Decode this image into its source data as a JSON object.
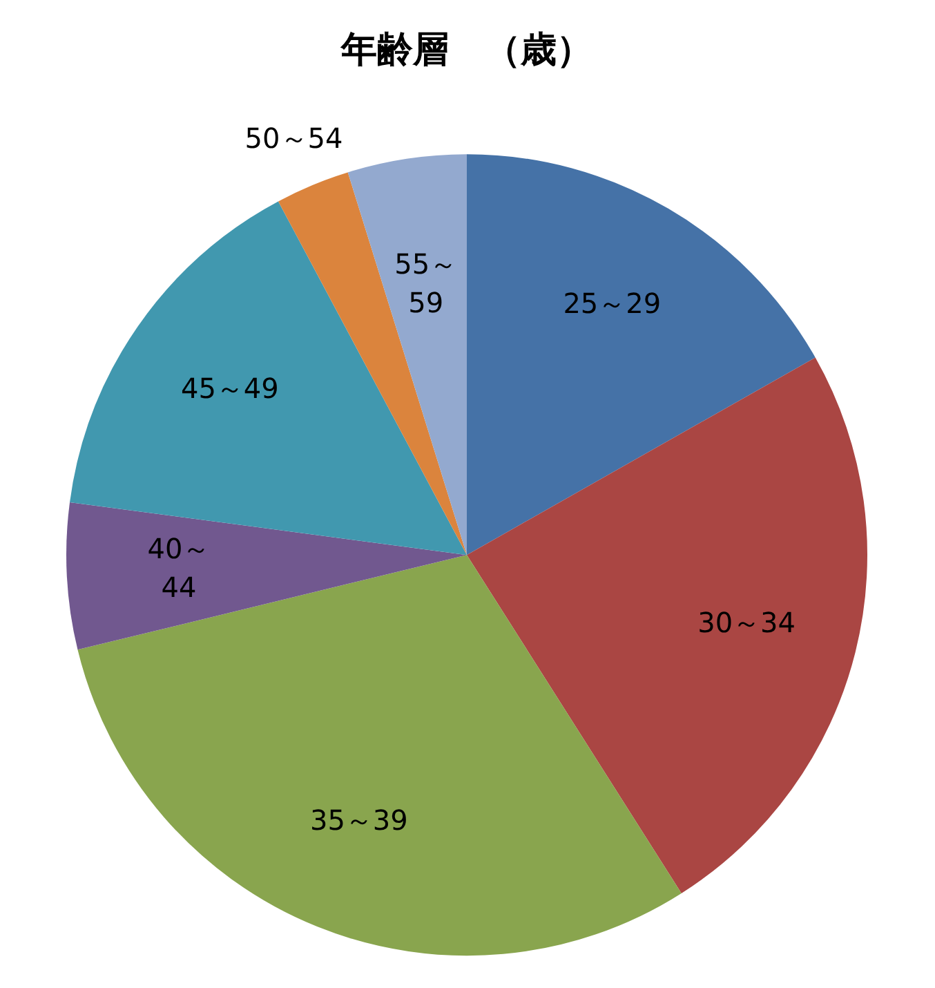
{
  "chart_data": {
    "type": "pie",
    "title": "年齢層　（歳）",
    "categories": [
      "25～29",
      "30～34",
      "35～39",
      "40～44",
      "45～49",
      "50～54",
      "55～59"
    ],
    "values": [
      16.8,
      24.2,
      30.2,
      5.9,
      15.1,
      3.0,
      4.8
    ],
    "colors": [
      "#4572a7",
      "#aa4643",
      "#89a54e",
      "#71588f",
      "#4198af",
      "#db843d",
      "#93a9cf"
    ],
    "legend": false
  }
}
